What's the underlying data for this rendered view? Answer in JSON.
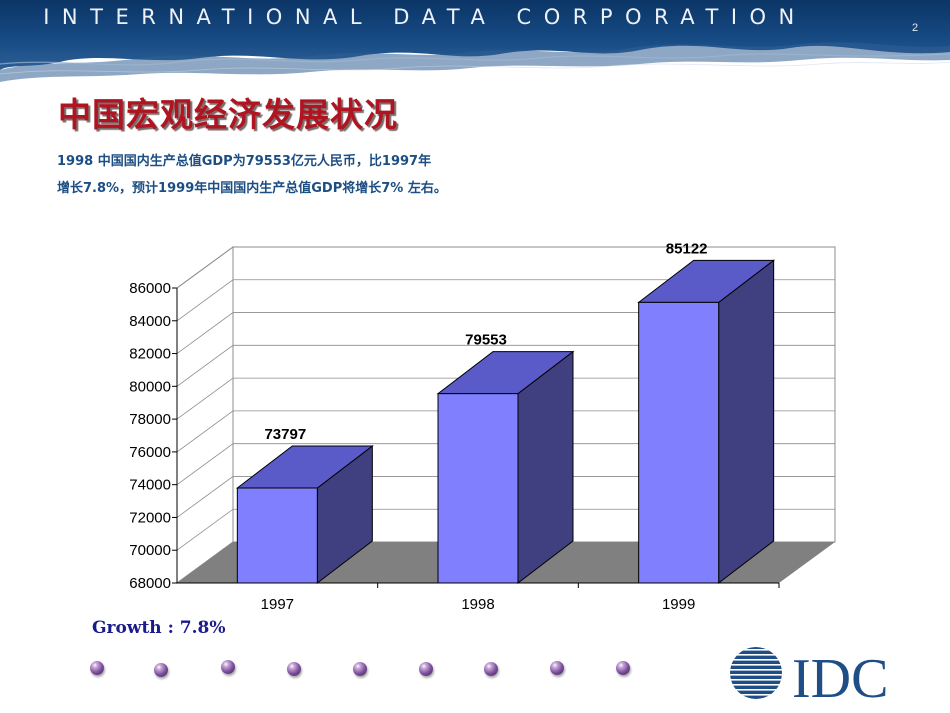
{
  "header": {
    "banner_text": "INTERNATIONAL DATA CORPORATION",
    "page_number": "2"
  },
  "slide": {
    "title": "中国宏观经济发展状况",
    "subtitle_line1": "1998 中国国内生产总值GDP为79553亿元人民币，比1997年",
    "subtitle_line2": "增长7.8%，预计1999年中国国内生产总值GDP将增长7% 左右。",
    "growth_note": "Growth : 7.8%"
  },
  "footer": {
    "logo_text": "IDC",
    "decorative_dots": 9
  },
  "colors": {
    "bar_front": "#8080ff",
    "bar_side": "#404080",
    "bar_top": "#5a5ac8",
    "floor": "#808080",
    "title": "#b01420",
    "subtitle": "#1d4e83",
    "banner": "#0f3c72"
  },
  "chart_data": {
    "type": "bar",
    "style": "3d",
    "categories": [
      "1997",
      "1998",
      "1999"
    ],
    "values": [
      73797,
      79553,
      85122
    ],
    "title": "",
    "xlabel": "",
    "ylabel": "",
    "ylim": [
      68000,
      86000
    ],
    "yticks": [
      68000,
      70000,
      72000,
      74000,
      76000,
      78000,
      80000,
      82000,
      84000,
      86000
    ],
    "grid": true,
    "legend": "none",
    "data_labels": true
  }
}
